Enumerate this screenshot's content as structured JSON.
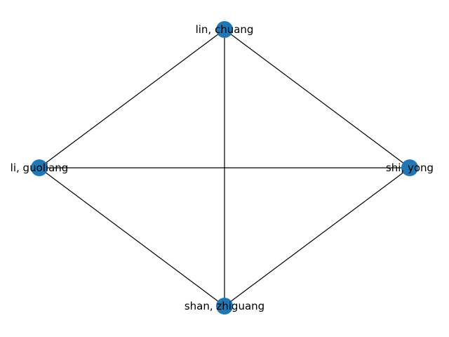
{
  "graph": {
    "node_color": "#1f77b4",
    "edge_color": "#000000",
    "nodes": [
      {
        "id": "lin",
        "label": "lin, chuang"
      },
      {
        "id": "shi",
        "label": "shi, yong"
      },
      {
        "id": "shan",
        "label": "shan, zhiguang"
      },
      {
        "id": "li",
        "label": "li, guoliang"
      }
    ],
    "edges": [
      {
        "source": "lin",
        "target": "li"
      },
      {
        "source": "lin",
        "target": "shi"
      },
      {
        "source": "lin",
        "target": "shan"
      },
      {
        "source": "li",
        "target": "shi"
      },
      {
        "source": "li",
        "target": "shan"
      },
      {
        "source": "shi",
        "target": "shan"
      }
    ]
  }
}
